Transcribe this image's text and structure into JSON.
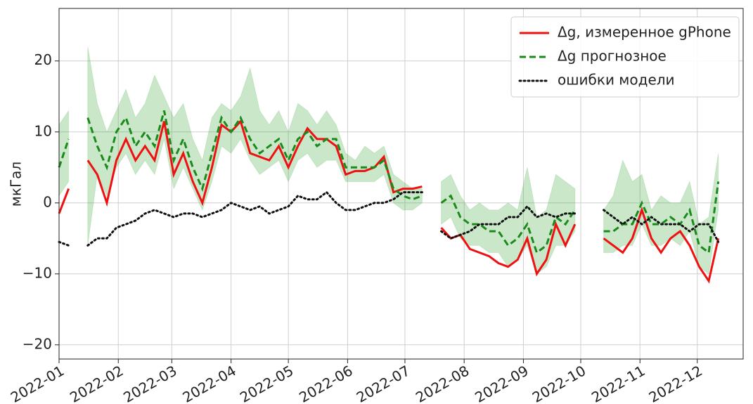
{
  "chart_data": {
    "type": "line",
    "ylabel": "мкГал",
    "x": [
      0,
      5,
      10,
      15,
      20,
      25,
      30,
      35,
      40,
      45,
      50,
      55,
      60,
      65,
      70,
      75,
      80,
      85,
      90,
      95,
      100,
      105,
      110,
      115,
      120,
      125,
      130,
      135,
      140,
      145,
      150,
      155,
      160,
      165,
      170,
      175,
      180,
      185,
      190,
      195,
      200,
      205,
      210,
      215,
      220,
      225,
      230,
      235,
      240,
      245,
      250,
      255,
      260,
      265,
      270,
      275,
      280,
      285,
      290,
      295,
      300,
      305,
      310,
      315,
      320,
      325,
      330,
      335,
      340,
      345
    ],
    "xlim": [
      0,
      358
    ],
    "xticks": [
      {
        "value": 0,
        "label": "2022-01"
      },
      {
        "value": 31,
        "label": "2022-02"
      },
      {
        "value": 59,
        "label": "2022-03"
      },
      {
        "value": 90,
        "label": "2022-04"
      },
      {
        "value": 120,
        "label": "2022-05"
      },
      {
        "value": 151,
        "label": "2022-06"
      },
      {
        "value": 181,
        "label": "2022-07"
      },
      {
        "value": 212,
        "label": "2022-08"
      },
      {
        "value": 243,
        "label": "2022-09"
      },
      {
        "value": 273,
        "label": "2022-10"
      },
      {
        "value": 304,
        "label": "2022-11"
      },
      {
        "value": 334,
        "label": "2022-12"
      }
    ],
    "ylim": [
      -22,
      27.4
    ],
    "yticks": [
      {
        "value": -20,
        "label": "−20"
      },
      {
        "value": -10,
        "label": "−10"
      },
      0,
      10,
      20
    ],
    "grid": true,
    "legend": "upper right",
    "band": {
      "color": "#2ca02c",
      "upper": [
        11,
        13,
        null,
        22,
        14,
        10,
        13,
        16,
        12,
        14,
        18,
        15,
        12,
        14,
        9,
        6,
        12,
        14,
        13,
        15,
        19,
        13,
        11,
        13,
        10,
        14,
        13,
        11,
        13,
        11,
        7,
        6,
        8,
        7,
        8,
        4,
        3,
        2,
        2,
        null,
        3,
        4,
        1,
        -1,
        0,
        -1,
        -1,
        0,
        -1,
        5,
        -2,
        -1,
        4,
        3,
        2,
        null,
        null,
        -1,
        1,
        6,
        3,
        4,
        -1,
        1,
        0,
        0,
        3,
        -3,
        -2,
        7
      ],
      "lower": [
        1,
        3,
        null,
        -6,
        4,
        1,
        5,
        7,
        4,
        6,
        4,
        9,
        2,
        5,
        2,
        -1,
        3,
        8,
        7,
        9,
        6,
        4,
        5,
        6,
        3,
        6,
        7,
        5,
        6,
        6,
        3,
        3,
        3,
        3,
        4,
        0,
        -1,
        -1,
        0,
        null,
        -3,
        -2,
        -5,
        -6,
        -6,
        -7,
        -7,
        -9,
        -8,
        -6,
        -10,
        -9,
        -6,
        -6,
        -4,
        null,
        null,
        -7,
        -7,
        -6,
        -6,
        -3,
        -6,
        -6,
        -5,
        -6,
        -4,
        -9,
        -10,
        -1
      ]
    },
    "series": [
      {
        "name": "Δg, измеренное gPhone",
        "color": "#ee1111",
        "style": "solid",
        "values": [
          -1.5,
          2,
          null,
          6,
          4,
          0,
          6,
          9,
          6,
          8,
          6,
          11.5,
          4,
          7,
          3,
          0,
          5,
          11,
          10,
          11.5,
          7,
          6.5,
          6,
          8,
          5,
          8,
          10.5,
          9,
          9,
          8,
          4,
          4.5,
          4.5,
          5,
          6.5,
          1.5,
          2,
          2,
          2.3,
          null,
          -3.5,
          -5,
          -4.5,
          -6.5,
          -7,
          -7.5,
          -8.5,
          -9,
          -8,
          -5,
          -10,
          -8,
          -3,
          -6,
          -3,
          null,
          null,
          -5,
          -6,
          -7,
          -5,
          -1,
          -5,
          -7,
          -5,
          -4,
          -6,
          -9,
          -11,
          -5
        ]
      },
      {
        "name": "Δg прогнозное",
        "color": "#1a8a1a",
        "style": "dashed",
        "values": [
          5,
          9,
          null,
          12,
          8,
          5,
          10,
          12,
          8,
          10,
          8,
          13,
          6,
          9,
          5,
          2,
          7,
          12,
          10,
          12,
          9,
          7,
          8,
          9,
          6,
          9,
          10,
          8,
          9,
          9,
          5,
          5,
          5,
          5,
          6,
          2,
          1,
          0.5,
          1,
          null,
          0,
          1,
          -2,
          -3,
          -3,
          -4,
          -4,
          -6,
          -5,
          -3,
          -7,
          -6,
          -2,
          -3,
          -1,
          null,
          null,
          -4,
          -4,
          -3,
          -3,
          0,
          -3,
          -3,
          -2,
          -3,
          -1,
          -6,
          -7,
          3
        ]
      },
      {
        "name": "ошибки модели",
        "color": "#111111",
        "style": "dotted",
        "values": [
          -5.5,
          -6,
          null,
          -6,
          -5,
          -5,
          -3.5,
          -3,
          -2.5,
          -1.5,
          -1,
          -1.5,
          -2,
          -1.5,
          -1.5,
          -2,
          -1.5,
          -1,
          0,
          -0.5,
          -1,
          -0.5,
          -1.5,
          -1,
          -0.5,
          1,
          0.5,
          0.5,
          1.5,
          0,
          -1,
          -1,
          -0.5,
          0,
          0,
          0.5,
          1.5,
          1.5,
          1.5,
          null,
          -4,
          -5,
          -4.5,
          -4,
          -3,
          -3,
          -3,
          -2,
          -2,
          -0.5,
          -2,
          -1.5,
          -2,
          -1.5,
          -1.5,
          null,
          null,
          -1,
          -2,
          -3,
          -2,
          -3,
          -2,
          -3,
          -3,
          -3,
          -4,
          -3,
          -3,
          -5.5
        ]
      }
    ]
  }
}
